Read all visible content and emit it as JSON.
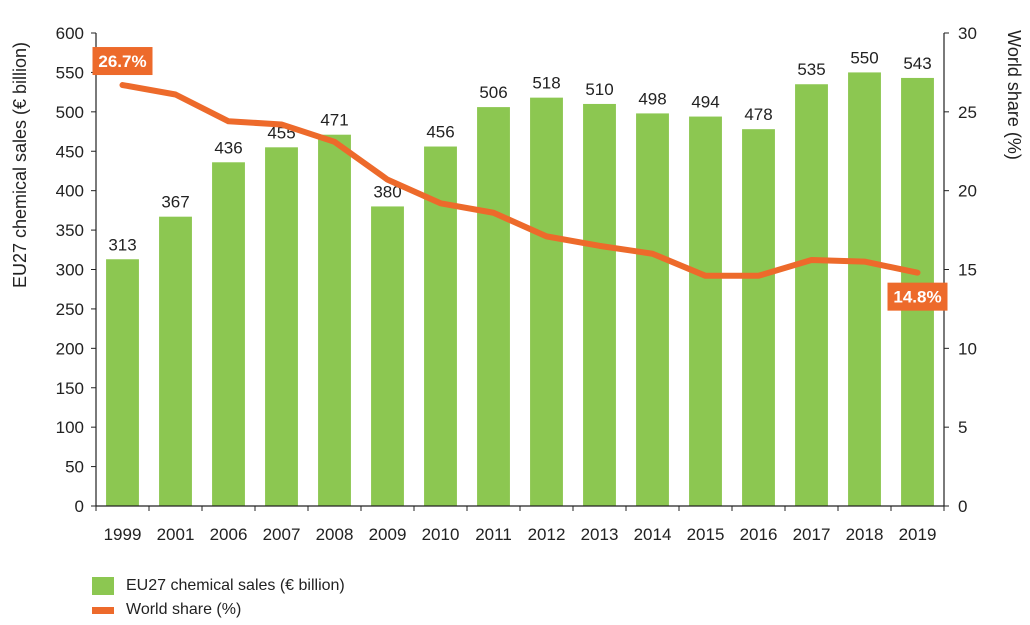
{
  "chart_data": {
    "type": "bar+line",
    "categories": [
      "1999",
      "2001",
      "2006",
      "2007",
      "2008",
      "2009",
      "2010",
      "2011",
      "2012",
      "2013",
      "2014",
      "2015",
      "2016",
      "2017",
      "2018",
      "2019"
    ],
    "series": [
      {
        "name": "EU27 chemical sales (€ billion)",
        "type": "bar",
        "axis": "left",
        "values": [
          313,
          367,
          436,
          455,
          471,
          380,
          456,
          506,
          518,
          510,
          498,
          494,
          478,
          535,
          550,
          543
        ],
        "value_labels": [
          "313",
          "367",
          "436",
          "455",
          "471",
          "380",
          "456",
          "506",
          "518",
          "510",
          "498",
          "494",
          "478",
          "535",
          "550",
          "543"
        ]
      },
      {
        "name": "World share (%)",
        "type": "line",
        "axis": "right",
        "values": [
          26.7,
          26.1,
          24.4,
          24.2,
          23.1,
          20.7,
          19.2,
          18.6,
          17.1,
          16.5,
          16.0,
          14.6,
          14.6,
          15.6,
          15.5,
          14.8
        ]
      }
    ],
    "callouts": [
      {
        "index": 0,
        "text": "26.7%"
      },
      {
        "index": 15,
        "text": "14.8%"
      }
    ],
    "left_axis": {
      "label": "EU27 chemical sales (€ billion)",
      "range": [
        0,
        600
      ],
      "ticks": [
        "0",
        "50",
        "100",
        "150",
        "200",
        "250",
        "300",
        "350",
        "400",
        "450",
        "500",
        "550",
        "600"
      ]
    },
    "right_axis": {
      "label": "World share (%)",
      "range": [
        0,
        30
      ],
      "ticks": [
        "0",
        "5",
        "10",
        "15",
        "20",
        "25",
        "30"
      ]
    },
    "grid": false,
    "legend_position": "bottom-left"
  },
  "legend": {
    "items": [
      {
        "label": "EU27 chemical sales (€ billion)"
      },
      {
        "label": "World share (%)"
      }
    ]
  },
  "colors": {
    "bar": "#8cc751",
    "line": "#ed6a2b",
    "callout": "#ed6a2b",
    "axis": "#222222"
  }
}
